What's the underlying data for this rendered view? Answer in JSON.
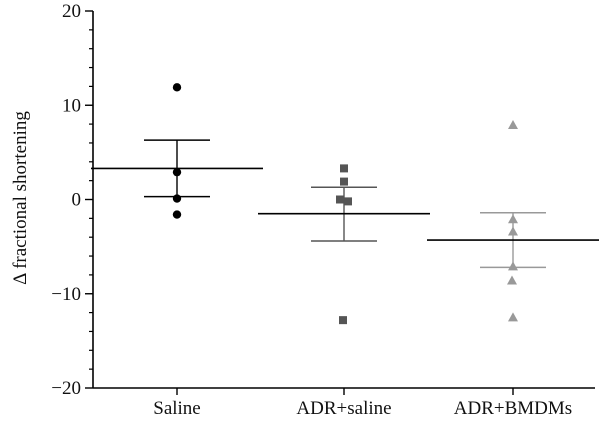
{
  "chart_data": {
    "type": "scatter",
    "ylabel": "Δ fractional shortening",
    "xlabel": "",
    "ylim": [
      -20,
      20
    ],
    "yticks": [
      -20,
      -10,
      0,
      10,
      20
    ],
    "y_minor_step": 2,
    "grid": false,
    "categories": [
      "Saline",
      "ADR+saline",
      "ADR+BMDMs"
    ],
    "groups": [
      {
        "category": "Saline",
        "marker": "circle",
        "color": "#000000",
        "points": [
          11.9,
          2.9,
          0.1,
          -1.6
        ],
        "mean": 3.3,
        "sem_upper": 6.3,
        "sem_lower": 0.3
      },
      {
        "category": "ADR+saline",
        "marker": "square",
        "color": "#555555",
        "points": [
          3.3,
          1.9,
          0.0,
          -0.2,
          -12.8
        ],
        "mean": -1.5,
        "sem_upper": 1.3,
        "sem_lower": -4.4
      },
      {
        "category": "ADR+BMDMs",
        "marker": "triangle",
        "color": "#999999",
        "points": [
          7.9,
          -2.1,
          -3.4,
          -7.1,
          -8.6,
          -12.5
        ],
        "mean": -4.3,
        "sem_upper": -1.4,
        "sem_lower": -7.2
      }
    ]
  }
}
